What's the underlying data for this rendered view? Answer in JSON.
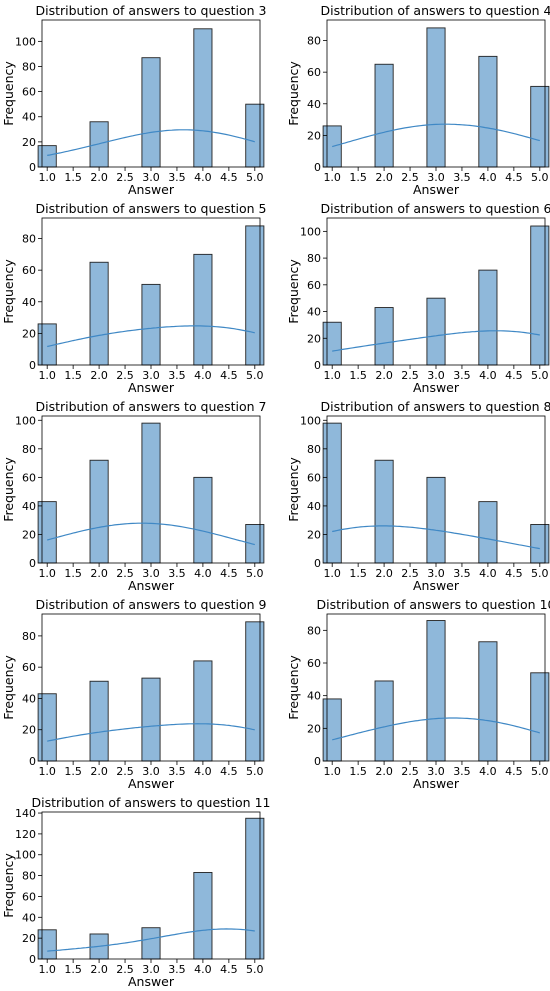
{
  "colors": {
    "bar_fill": "#8fb8da",
    "bar_edge": "#222222",
    "kde_line": "#3f88c5",
    "axes": "#000000"
  },
  "chart_data": [
    {
      "type": "bar",
      "title": "Distribution of answers to question 3",
      "xlabel": "Answer",
      "ylabel": "Frequency",
      "xlim": [
        0.9,
        5.1
      ],
      "ylim": [
        0,
        117
      ],
      "x_ticks": [
        "1.0",
        "1.5",
        "2.0",
        "2.5",
        "3.0",
        "3.5",
        "4.0",
        "4.5",
        "5.0"
      ],
      "y_ticks": [
        0,
        20,
        40,
        60,
        80,
        100
      ],
      "bins": [
        1,
        2,
        3,
        4,
        5
      ],
      "values": [
        17,
        36,
        87,
        110,
        50
      ],
      "kde_overlay": true,
      "grid": false
    },
    {
      "type": "bar",
      "title": "Distribution of answers to question 4",
      "xlabel": "Answer",
      "ylabel": "Frequency",
      "xlim": [
        0.9,
        5.1
      ],
      "ylim": [
        0,
        93
      ],
      "x_ticks": [
        "1.0",
        "1.5",
        "2.0",
        "2.5",
        "3.0",
        "3.5",
        "4.0",
        "4.5",
        "5.0"
      ],
      "y_ticks": [
        0,
        20,
        40,
        60,
        80
      ],
      "bins": [
        1,
        2,
        3,
        4,
        5
      ],
      "values": [
        26,
        65,
        88,
        70,
        51
      ],
      "kde_overlay": true,
      "grid": false
    },
    {
      "type": "bar",
      "title": "Distribution of answers to question 5",
      "xlabel": "Answer",
      "ylabel": "Frequency",
      "xlim": [
        0.9,
        5.1
      ],
      "ylim": [
        0,
        93
      ],
      "x_ticks": [
        "1.0",
        "1.5",
        "2.0",
        "2.5",
        "3.0",
        "3.5",
        "4.0",
        "4.5",
        "5.0"
      ],
      "y_ticks": [
        0,
        20,
        40,
        60,
        80
      ],
      "bins": [
        1,
        2,
        3,
        4,
        5
      ],
      "values": [
        26,
        65,
        51,
        70,
        88
      ],
      "kde_overlay": true,
      "grid": false
    },
    {
      "type": "bar",
      "title": "Distribution of answers to question 6",
      "xlabel": "Answer",
      "ylabel": "Frequency",
      "xlim": [
        0.9,
        5.1
      ],
      "ylim": [
        0,
        110
      ],
      "x_ticks": [
        "1.0",
        "1.5",
        "2.0",
        "2.5",
        "3.0",
        "3.5",
        "4.0",
        "4.5",
        "5.0"
      ],
      "y_ticks": [
        0,
        20,
        40,
        60,
        80,
        100
      ],
      "bins": [
        1,
        2,
        3,
        4,
        5
      ],
      "values": [
        32,
        43,
        50,
        71,
        104
      ],
      "kde_overlay": true,
      "grid": false
    },
    {
      "type": "bar",
      "title": "Distribution of answers to question 7",
      "xlabel": "Answer",
      "ylabel": "Frequency",
      "xlim": [
        0.9,
        5.1
      ],
      "ylim": [
        0,
        103
      ],
      "x_ticks": [
        "1.0",
        "1.5",
        "2.0",
        "2.5",
        "3.0",
        "3.5",
        "4.0",
        "4.5",
        "5.0"
      ],
      "y_ticks": [
        0,
        20,
        40,
        60,
        80,
        100
      ],
      "bins": [
        1,
        2,
        3,
        4,
        5
      ],
      "values": [
        43,
        72,
        98,
        60,
        27
      ],
      "kde_overlay": true,
      "grid": false
    },
    {
      "type": "bar",
      "title": "Distribution of answers to question 8",
      "xlabel": "Answer",
      "ylabel": "Frequency",
      "xlim": [
        0.9,
        5.1
      ],
      "ylim": [
        0,
        103
      ],
      "x_ticks": [
        "1.0",
        "1.5",
        "2.0",
        "2.5",
        "3.0",
        "3.5",
        "4.0",
        "4.5",
        "5.0"
      ],
      "y_ticks": [
        0,
        20,
        40,
        60,
        80,
        100
      ],
      "bins": [
        1,
        2,
        3,
        4,
        5
      ],
      "values": [
        98,
        72,
        60,
        43,
        27
      ],
      "kde_overlay": true,
      "grid": false
    },
    {
      "type": "bar",
      "title": "Distribution of answers to question 9",
      "xlabel": "Answer",
      "ylabel": "Frequency",
      "xlim": [
        0.9,
        5.1
      ],
      "ylim": [
        0,
        94
      ],
      "x_ticks": [
        "1.0",
        "1.5",
        "2.0",
        "2.5",
        "3.0",
        "3.5",
        "4.0",
        "4.5",
        "5.0"
      ],
      "y_ticks": [
        0,
        20,
        40,
        60,
        80
      ],
      "bins": [
        1,
        2,
        3,
        4,
        5
      ],
      "values": [
        43,
        51,
        53,
        64,
        89
      ],
      "kde_overlay": true,
      "grid": false
    },
    {
      "type": "bar",
      "title": "Distribution of answers to question 10",
      "xlabel": "Answer",
      "ylabel": "Frequency",
      "xlim": [
        0.9,
        5.1
      ],
      "ylim": [
        0,
        90
      ],
      "x_ticks": [
        "1.0",
        "1.5",
        "2.0",
        "2.5",
        "3.0",
        "3.5",
        "4.0",
        "4.5",
        "5.0"
      ],
      "y_ticks": [
        0,
        20,
        40,
        60,
        80
      ],
      "bins": [
        1,
        2,
        3,
        4,
        5
      ],
      "values": [
        38,
        49,
        86,
        73,
        54
      ],
      "kde_overlay": true,
      "grid": false
    },
    {
      "type": "bar",
      "title": "Distribution of answers to question 11",
      "xlabel": "Answer",
      "ylabel": "Frequency",
      "xlim": [
        0.9,
        5.1
      ],
      "ylim": [
        0,
        141
      ],
      "x_ticks": [
        "1.0",
        "1.5",
        "2.0",
        "2.5",
        "3.0",
        "3.5",
        "4.0",
        "4.5",
        "5.0"
      ],
      "y_ticks": [
        0,
        20,
        40,
        60,
        80,
        100,
        120,
        140
      ],
      "bins": [
        1,
        2,
        3,
        4,
        5
      ],
      "values": [
        28,
        24,
        30,
        83,
        135
      ],
      "kde_overlay": true,
      "grid": false
    }
  ]
}
